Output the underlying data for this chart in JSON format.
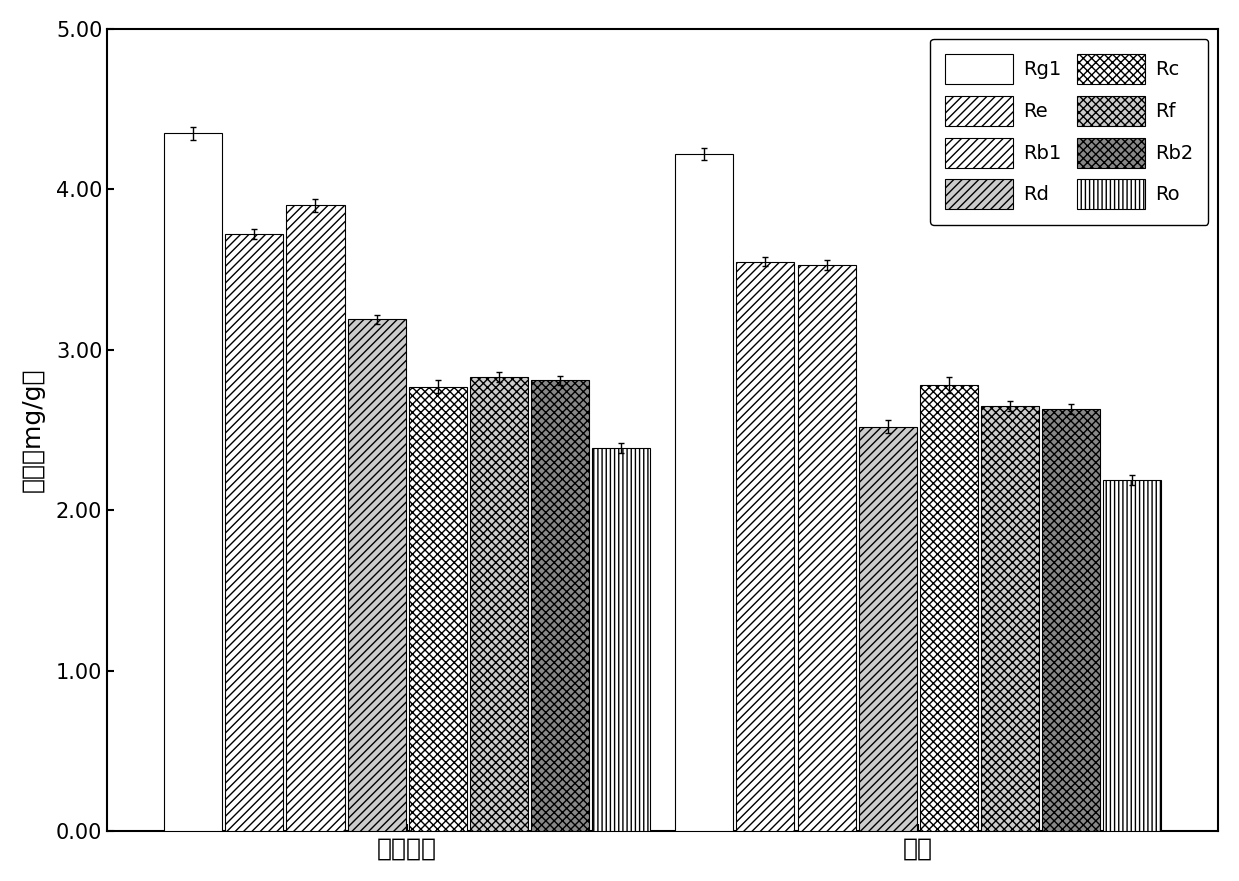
{
  "groups": [
    "仿生肠液",
    "超声"
  ],
  "series": [
    {
      "label": "Rg1",
      "values": [
        4.35,
        4.22
      ],
      "errors": [
        0.04,
        0.04
      ]
    },
    {
      "label": "Re",
      "values": [
        3.72,
        3.55
      ],
      "errors": [
        0.03,
        0.03
      ]
    },
    {
      "label": "Rb1",
      "values": [
        3.9,
        3.53
      ],
      "errors": [
        0.04,
        0.03
      ]
    },
    {
      "label": "Rd",
      "values": [
        3.19,
        2.52
      ],
      "errors": [
        0.03,
        0.04
      ]
    },
    {
      "label": "Rc",
      "values": [
        2.77,
        2.78
      ],
      "errors": [
        0.04,
        0.05
      ]
    },
    {
      "label": "Rf",
      "values": [
        2.83,
        2.65
      ],
      "errors": [
        0.03,
        0.03
      ]
    },
    {
      "label": "Rb2",
      "values": [
        2.81,
        2.63
      ],
      "errors": [
        0.03,
        0.03
      ]
    },
    {
      "label": "Ro",
      "values": [
        2.39,
        2.19
      ],
      "errors": [
        0.03,
        0.03
      ]
    }
  ],
  "ylabel": "浓度（mg/g）",
  "ylim": [
    0,
    5.0
  ],
  "yticks": [
    0.0,
    1.0,
    2.0,
    3.0,
    4.0,
    5.0
  ],
  "ytick_labels": [
    "0.00",
    "1.00",
    "2.00",
    "3.00",
    "4.00",
    "5.00"
  ],
  "bar_width": 0.055,
  "group_centers": [
    0.32,
    0.78
  ],
  "background_color": "white",
  "axis_fontsize": 18,
  "tick_fontsize": 15,
  "legend_fontsize": 14
}
